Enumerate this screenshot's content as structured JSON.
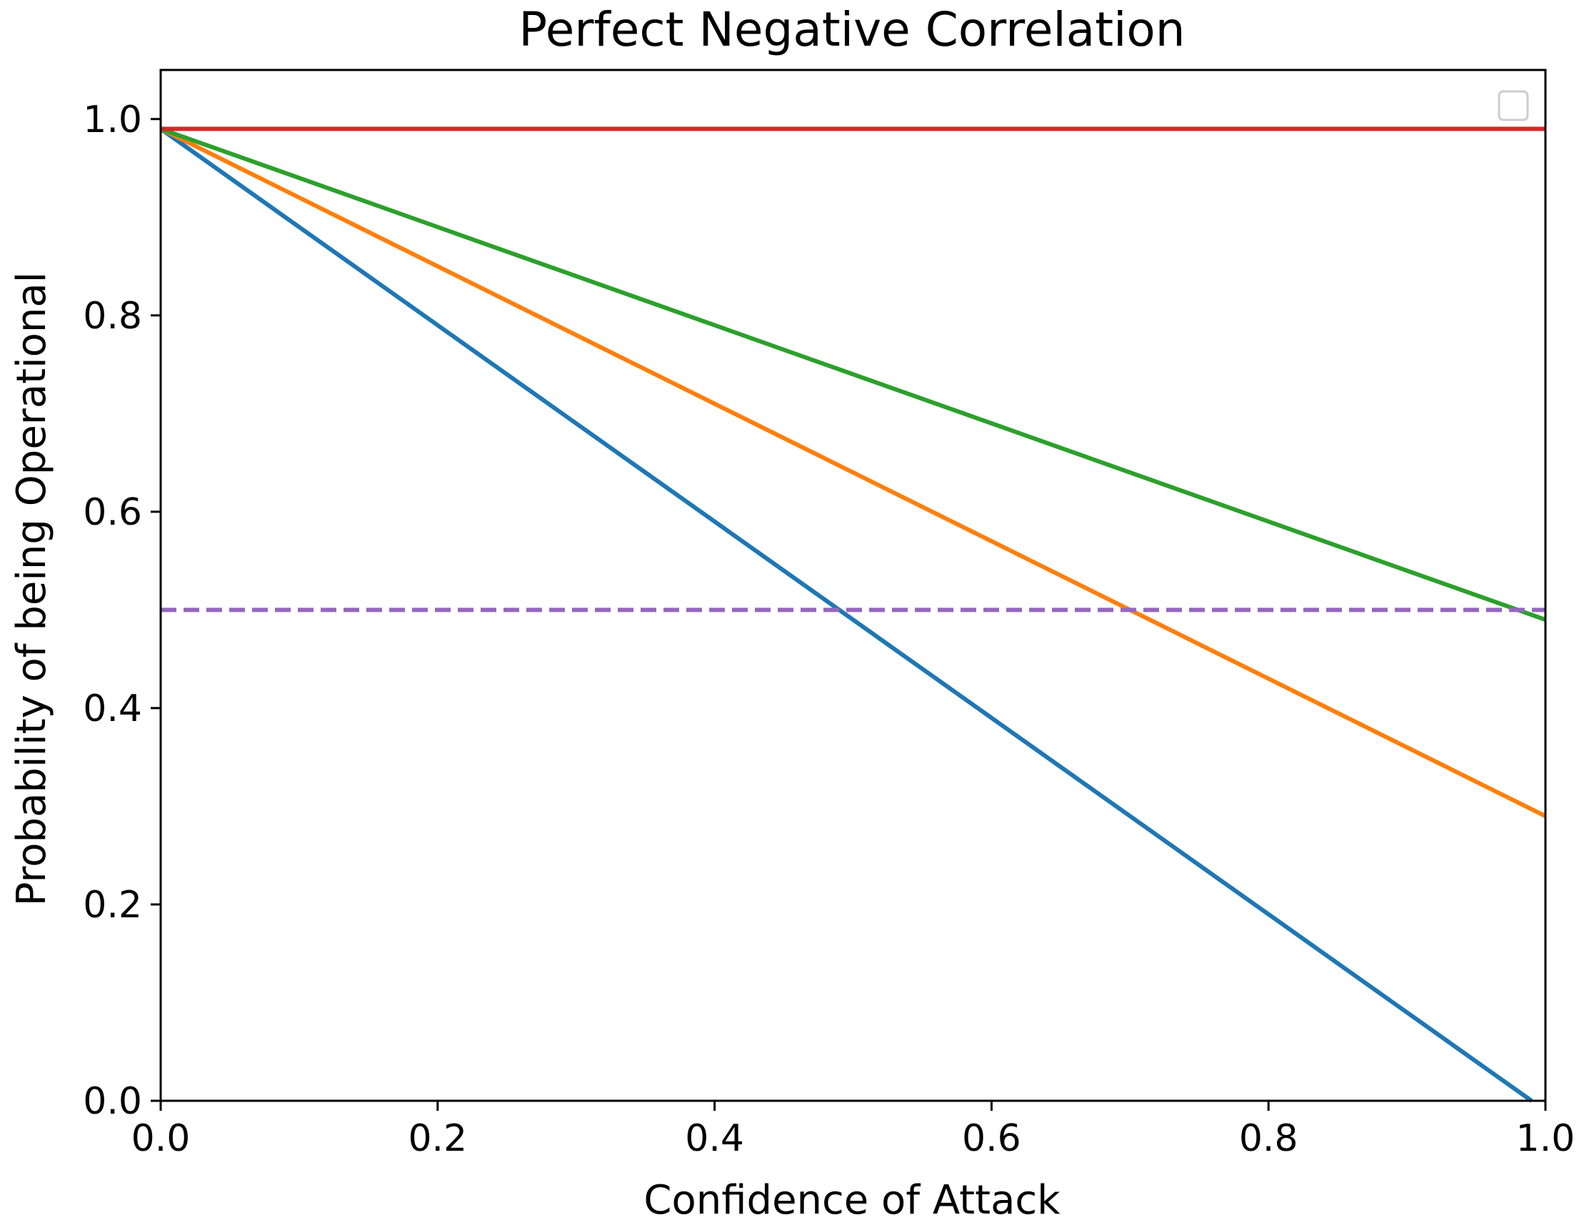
{
  "chart_data": {
    "type": "line",
    "title": "Perfect Negative Correlation",
    "xlabel": "Confidence of Attack",
    "ylabel": "Probability of being Operational",
    "xlim": [
      0.0,
      1.0
    ],
    "ylim": [
      0.0,
      1.05
    ],
    "grid": false,
    "legend": {
      "location": "top-right",
      "entries": []
    },
    "x_ticks": [
      0.0,
      0.2,
      0.4,
      0.6,
      0.8,
      1.0
    ],
    "x_tick_labels": [
      "0.0",
      "0.2",
      "0.4",
      "0.6",
      "0.8",
      "1.0"
    ],
    "y_ticks": [
      0.0,
      0.2,
      0.4,
      0.6,
      0.8,
      1.0
    ],
    "y_tick_labels": [
      "0.0",
      "0.2",
      "0.4",
      "0.6",
      "0.8",
      "1.0"
    ],
    "series": [
      {
        "name": "blue line",
        "color": "#1f77b4",
        "dash": false,
        "x": [
          0.0,
          0.99
        ],
        "y": [
          0.99,
          0.0
        ]
      },
      {
        "name": "orange line",
        "color": "#ff7f0e",
        "dash": false,
        "x": [
          0.0,
          1.0
        ],
        "y": [
          0.99,
          0.29
        ]
      },
      {
        "name": "green line",
        "color": "#2ca02c",
        "dash": false,
        "x": [
          0.0,
          1.0
        ],
        "y": [
          0.99,
          0.49
        ]
      },
      {
        "name": "red line",
        "color": "#d62728",
        "dash": false,
        "x": [
          0.0,
          1.0
        ],
        "y": [
          0.99,
          0.99
        ]
      },
      {
        "name": "purple dashed line",
        "color": "#9467bd",
        "dash": true,
        "x": [
          0.0,
          1.0
        ],
        "y": [
          0.5,
          0.5
        ]
      }
    ]
  }
}
